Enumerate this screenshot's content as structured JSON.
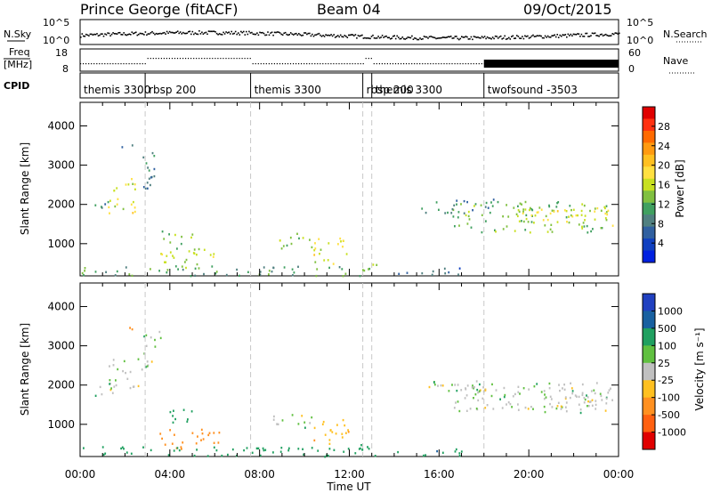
{
  "header": {
    "station": "Prince George (fitACF)",
    "beam": "Beam 04",
    "date": "09/Oct/2015"
  },
  "noise_panel": {
    "left_label": "N.Sky",
    "right_label": "N.Search",
    "left_ticks": [
      "10^5",
      "10^0"
    ],
    "right_ticks": [
      "10^5",
      "10^0"
    ]
  },
  "freq_panel": {
    "left_label_1": "Freq",
    "left_label_2": "[MHz]",
    "right_label": "Nave",
    "left_ticks": [
      "18",
      "8"
    ],
    "right_ticks": [
      "60",
      "0"
    ]
  },
  "cpid_panel": {
    "label": "CPID",
    "programs": [
      {
        "name": "themis 3300",
        "start_h": 0,
        "end_h": 2.9
      },
      {
        "name": "rbsp 200",
        "start_h": 2.9,
        "end_h": 7.6
      },
      {
        "name": "themis 3300",
        "start_h": 7.6,
        "end_h": 12.6
      },
      {
        "name": "rbsp 200",
        "start_h": 12.6,
        "end_h": 13.0
      },
      {
        "name": "themis 3300",
        "start_h": 13.0,
        "end_h": 18.0
      },
      {
        "name": "twofsound -3503",
        "start_h": 18.0,
        "end_h": 24.0
      }
    ]
  },
  "power_colorbar": {
    "label": "Power [dB]",
    "ticks": [
      "28",
      "24",
      "20",
      "16",
      "12",
      "8",
      "4"
    ],
    "colors": [
      "#e00000",
      "#ff3010",
      "#ff6a00",
      "#ff9a10",
      "#ffc020",
      "#ffe040",
      "#c8e020",
      "#80c040",
      "#40a060",
      "#508080",
      "#3060a0",
      "#1040c0",
      "#0020e0"
    ]
  },
  "velocity_colorbar": {
    "label": "Velocity [m s⁻¹]",
    "ticks": [
      "1000",
      "500",
      "100",
      "25",
      "-25",
      "-100",
      "-500",
      "-1000"
    ],
    "colors": [
      "#2040c0",
      "#1860a0",
      "#20a060",
      "#60c040",
      "#c0c0c0",
      "#ffc020",
      "#ff9020",
      "#ff6010",
      "#e00000"
    ]
  },
  "x_axis": {
    "label": "Time UT",
    "ticks": [
      "00:00",
      "04:00",
      "08:00",
      "12:00",
      "16:00",
      "20:00",
      "00:00"
    ]
  },
  "chart_data": [
    {
      "type": "heatmap",
      "title": "Power",
      "xlabel": "Time UT",
      "ylabel": "Slant Range [km]",
      "xlim": [
        0,
        24
      ],
      "ylim": [
        180,
        4600
      ],
      "yticks": [
        1000,
        2000,
        3000,
        4000
      ],
      "colorbar": {
        "label": "Power [dB]",
        "range": [
          0,
          30
        ]
      },
      "scatter_regions": [
        {
          "t": [
            0.6,
            1.4
          ],
          "r": [
            1750,
            2100
          ],
          "v": 8
        },
        {
          "t": [
            1.2,
            2.6
          ],
          "r": [
            1800,
            2700
          ],
          "v": 16
        },
        {
          "t": [
            1.7,
            2.4
          ],
          "r": [
            3400,
            3550
          ],
          "v": 6
        },
        {
          "t": [
            2.7,
            3.6
          ],
          "r": [
            2300,
            3400
          ],
          "v": 8
        },
        {
          "t": [
            3.5,
            6.2
          ],
          "r": [
            400,
            900
          ],
          "v": 14
        },
        {
          "t": [
            3.6,
            5.0
          ],
          "r": [
            1000,
            1400
          ],
          "v": 12
        },
        {
          "t": [
            0.0,
            12.6
          ],
          "r": [
            200,
            450
          ],
          "v": 10
        },
        {
          "t": [
            8.6,
            10.4
          ],
          "r": [
            900,
            1300
          ],
          "v": 14
        },
        {
          "t": [
            10.4,
            12.0
          ],
          "r": [
            500,
            1200
          ],
          "v": 16
        },
        {
          "t": [
            12.2,
            13.4
          ],
          "r": [
            200,
            500
          ],
          "v": 12
        },
        {
          "t": [
            16.6,
            23.6
          ],
          "r": [
            1300,
            2100
          ],
          "v": 12
        },
        {
          "t": [
            19.4,
            23.8
          ],
          "r": [
            1450,
            1950
          ],
          "v": 16
        },
        {
          "t": [
            15.2,
            18.4
          ],
          "r": [
            1800,
            2150
          ],
          "v": 8
        },
        {
          "t": [
            13.6,
            17.0
          ],
          "r": [
            220,
            400
          ],
          "v": 6
        }
      ]
    },
    {
      "type": "heatmap",
      "title": "Velocity",
      "xlabel": "Time UT",
      "ylabel": "Slant Range [km]",
      "xlim": [
        0,
        24
      ],
      "ylim": [
        180,
        4600
      ],
      "yticks": [
        1000,
        2000,
        3000,
        4000
      ],
      "colorbar": {
        "label": "Velocity [m s⁻¹]",
        "range": [
          -1000,
          1000
        ]
      },
      "scatter_regions": [
        {
          "t": [
            0.6,
            1.4
          ],
          "r": [
            1750,
            2100
          ],
          "v": 0
        },
        {
          "t": [
            1.2,
            2.6
          ],
          "r": [
            1800,
            2700
          ],
          "v": 0
        },
        {
          "t": [
            1.7,
            2.4
          ],
          "r": [
            3400,
            3550
          ],
          "v": -200
        },
        {
          "t": [
            2.7,
            3.6
          ],
          "r": [
            2300,
            3400
          ],
          "v": 0
        },
        {
          "t": [
            3.5,
            6.2
          ],
          "r": [
            400,
            900
          ],
          "v": -300
        },
        {
          "t": [
            3.6,
            5.0
          ],
          "r": [
            1000,
            1400
          ],
          "v": 50
        },
        {
          "t": [
            0.0,
            12.6
          ],
          "r": [
            200,
            450
          ],
          "v": 60
        },
        {
          "t": [
            8.6,
            10.4
          ],
          "r": [
            900,
            1300
          ],
          "v": 0
        },
        {
          "t": [
            10.4,
            12.0
          ],
          "r": [
            500,
            1200
          ],
          "v": -80
        },
        {
          "t": [
            12.2,
            13.4
          ],
          "r": [
            200,
            500
          ],
          "v": 40
        },
        {
          "t": [
            16.6,
            23.6
          ],
          "r": [
            1300,
            2100
          ],
          "v": 0
        },
        {
          "t": [
            19.4,
            23.8
          ],
          "r": [
            1450,
            1950
          ],
          "v": 0
        },
        {
          "t": [
            15.2,
            18.4
          ],
          "r": [
            1800,
            2150
          ],
          "v": 0
        },
        {
          "t": [
            13.6,
            17.0
          ],
          "r": [
            220,
            400
          ],
          "v": 80
        }
      ]
    }
  ]
}
